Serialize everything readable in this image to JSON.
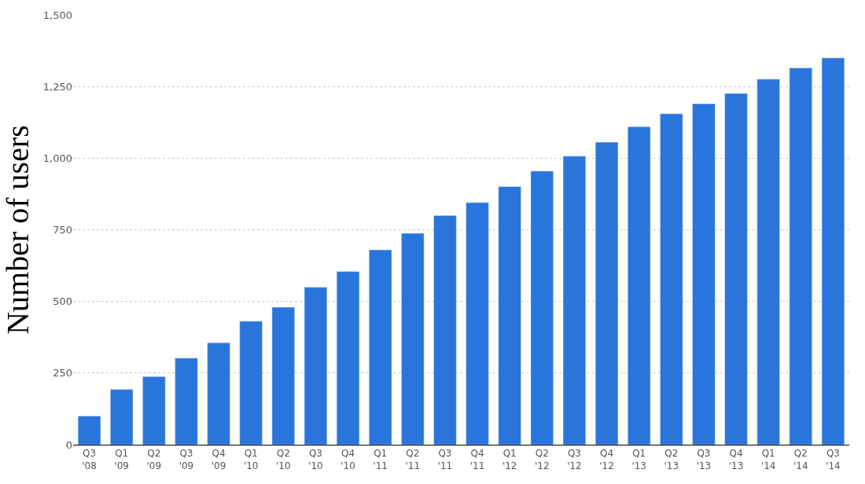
{
  "chart_data": {
    "type": "bar",
    "ylabel": "Number of users",
    "categories": [
      "Q3\n'08",
      "Q1\n'09",
      "Q2\n'09",
      "Q3\n'09",
      "Q4\n'09",
      "Q1\n'10",
      "Q2\n'10",
      "Q3\n'10",
      "Q4\n'10",
      "Q1\n'11",
      "Q2\n'11",
      "Q3\n'11",
      "Q4\n'11",
      "Q1\n'12",
      "Q2\n'12",
      "Q3\n'12",
      "Q4\n'12",
      "Q1\n'13",
      "Q2\n'13",
      "Q3\n'13",
      "Q4\n'13",
      "Q1\n'14",
      "Q2\n'14",
      "Q3\n'14"
    ],
    "values": [
      100,
      193,
      238,
      302,
      356,
      431,
      480,
      550,
      605,
      680,
      738,
      800,
      845,
      901,
      955,
      1007,
      1056,
      1110,
      1155,
      1190,
      1226,
      1276,
      1315,
      1350
    ],
    "color": "#2a75dc",
    "ylim": [
      0,
      1500
    ],
    "yticks": [
      0,
      250,
      500,
      750,
      {
        "value": 1000,
        "label": "1,000"
      },
      {
        "value": 1250,
        "label": "1,250"
      },
      {
        "value": 1500,
        "label": "1,500"
      }
    ],
    "grid": "y"
  }
}
